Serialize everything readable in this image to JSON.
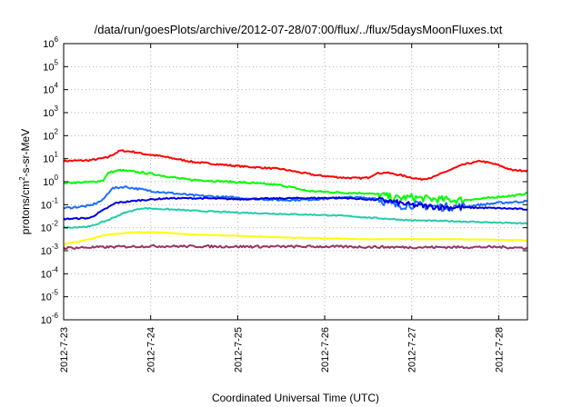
{
  "chart_data": {
    "type": "line",
    "title": "/data/run/goesPlots/archive/2012-07-28/07:00/flux/../flux/5daysMoonFluxes.txt",
    "xlabel": "Coordinated Universal Time (UTC)",
    "ylabel": "protons/cm²-s-sr-MeV",
    "ylabel_parts": {
      "pre": "protons/cm",
      "sup": "2",
      "post": "-s-sr-MeV"
    },
    "yscale": "log",
    "ylim_exp": [
      -6,
      6
    ],
    "y_tick_exponents": [
      -6,
      -5,
      -4,
      -3,
      -2,
      -1,
      0,
      1,
      2,
      3,
      4,
      5,
      6
    ],
    "y_tick_base": "10",
    "xlim": [
      0,
      5.33
    ],
    "x_ticks": [
      {
        "v": 0,
        "label": "2012-7-23"
      },
      {
        "v": 1,
        "label": "2012-7-24"
      },
      {
        "v": 2,
        "label": "2012-7-25"
      },
      {
        "v": 3,
        "label": "2012-7-26"
      },
      {
        "v": 4,
        "label": "2012-7-27"
      },
      {
        "v": 5,
        "label": "2012-7-28"
      }
    ],
    "grid": true,
    "legend": "none",
    "series": [
      {
        "color": "#ff0000",
        "noise": 0.035,
        "pts": [
          [
            0,
            0.9
          ],
          [
            0.3,
            0.93
          ],
          [
            0.5,
            1.05
          ],
          [
            0.65,
            1.35
          ],
          [
            0.8,
            1.3
          ],
          [
            0.9,
            1.22
          ],
          [
            1.1,
            1.12
          ],
          [
            1.5,
            0.85
          ],
          [
            2.0,
            0.68
          ],
          [
            2.5,
            0.55
          ],
          [
            2.9,
            0.28
          ],
          [
            3.2,
            0.18
          ],
          [
            3.4,
            0.15
          ],
          [
            3.5,
            0.18
          ],
          [
            3.58,
            0.35
          ],
          [
            3.7,
            0.4
          ],
          [
            3.85,
            0.3
          ],
          [
            4.0,
            0.18
          ],
          [
            4.1,
            0.1
          ],
          [
            4.25,
            0.2
          ],
          [
            4.4,
            0.45
          ],
          [
            4.6,
            0.75
          ],
          [
            4.8,
            0.9
          ],
          [
            5.0,
            0.72
          ],
          [
            5.15,
            0.5
          ],
          [
            5.33,
            0.48
          ]
        ]
      },
      {
        "color": "#00ff00",
        "noise": 0.04,
        "pts": [
          [
            0,
            -0.05
          ],
          [
            0.3,
            -0.02
          ],
          [
            0.45,
            0.05
          ],
          [
            0.52,
            0.4
          ],
          [
            0.65,
            0.5
          ],
          [
            1.0,
            0.35
          ],
          [
            1.4,
            0.1
          ],
          [
            2.0,
            -0.02
          ],
          [
            2.5,
            -0.15
          ],
          [
            2.8,
            -0.4
          ],
          [
            3.2,
            -0.48
          ],
          [
            3.5,
            -0.5
          ],
          [
            3.7,
            -0.62
          ],
          [
            3.8,
            -0.72
          ],
          [
            4.0,
            -0.68
          ],
          [
            4.2,
            -0.75
          ],
          [
            4.5,
            -0.8
          ],
          [
            4.8,
            -0.75
          ],
          [
            5.0,
            -0.65
          ],
          [
            5.2,
            -0.6
          ],
          [
            5.33,
            -0.5
          ]
        ]
      },
      {
        "color": "#1e6eff",
        "noise": 0.045,
        "pts": [
          [
            0,
            -1.15
          ],
          [
            0.3,
            -1.05
          ],
          [
            0.45,
            -0.8
          ],
          [
            0.55,
            -0.3
          ],
          [
            0.7,
            -0.22
          ],
          [
            1.0,
            -0.4
          ],
          [
            1.5,
            -0.6
          ],
          [
            2.0,
            -0.7
          ],
          [
            2.5,
            -0.8
          ],
          [
            2.8,
            -0.78
          ],
          [
            3.3,
            -0.68
          ],
          [
            3.6,
            -0.72
          ],
          [
            3.8,
            -1.05
          ],
          [
            4.0,
            -1.0
          ],
          [
            4.3,
            -1.1
          ],
          [
            4.6,
            -1.08
          ],
          [
            5.0,
            -0.92
          ],
          [
            5.33,
            -0.85
          ]
        ]
      },
      {
        "color": "#0000dd",
        "noise": 0.03,
        "pts": [
          [
            0,
            -1.62
          ],
          [
            0.3,
            -1.58
          ],
          [
            0.45,
            -1.25
          ],
          [
            0.6,
            -0.92
          ],
          [
            0.9,
            -0.8
          ],
          [
            1.2,
            -0.72
          ],
          [
            1.6,
            -0.72
          ],
          [
            2.0,
            -0.76
          ],
          [
            2.6,
            -0.72
          ],
          [
            3.2,
            -0.7
          ],
          [
            3.7,
            -0.82
          ],
          [
            4.0,
            -1.02
          ],
          [
            4.3,
            -1.1
          ],
          [
            4.6,
            -1.12
          ],
          [
            5.0,
            -1.15
          ],
          [
            5.33,
            -1.2
          ]
        ]
      },
      {
        "color": "#22ccaa",
        "noise": 0.025,
        "pts": [
          [
            0,
            -2.0
          ],
          [
            0.3,
            -1.95
          ],
          [
            0.5,
            -1.68
          ],
          [
            0.7,
            -1.35
          ],
          [
            0.9,
            -1.15
          ],
          [
            1.2,
            -1.2
          ],
          [
            1.6,
            -1.28
          ],
          [
            2.0,
            -1.34
          ],
          [
            2.5,
            -1.4
          ],
          [
            3.0,
            -1.45
          ],
          [
            3.3,
            -1.5
          ],
          [
            3.5,
            -1.56
          ],
          [
            4.0,
            -1.68
          ],
          [
            4.5,
            -1.72
          ],
          [
            5.0,
            -1.78
          ],
          [
            5.33,
            -1.82
          ]
        ]
      },
      {
        "color": "#ffff00",
        "noise": 0.015,
        "pts": [
          [
            0,
            -2.72
          ],
          [
            0.3,
            -2.5
          ],
          [
            0.5,
            -2.3
          ],
          [
            0.8,
            -2.2
          ],
          [
            1.1,
            -2.2
          ],
          [
            1.5,
            -2.3
          ],
          [
            2.0,
            -2.35
          ],
          [
            2.5,
            -2.42
          ],
          [
            3.0,
            -2.46
          ],
          [
            3.5,
            -2.5
          ],
          [
            4.0,
            -2.5
          ],
          [
            4.5,
            -2.5
          ],
          [
            5.0,
            -2.52
          ],
          [
            5.33,
            -2.55
          ]
        ]
      },
      {
        "color": "#993366",
        "noise": 0.05,
        "pts": [
          [
            0,
            -2.88
          ],
          [
            1.0,
            -2.8
          ],
          [
            2.0,
            -2.82
          ],
          [
            3.0,
            -2.82
          ],
          [
            4.0,
            -2.85
          ],
          [
            5.0,
            -2.84
          ],
          [
            5.33,
            -2.88
          ]
        ]
      }
    ]
  }
}
